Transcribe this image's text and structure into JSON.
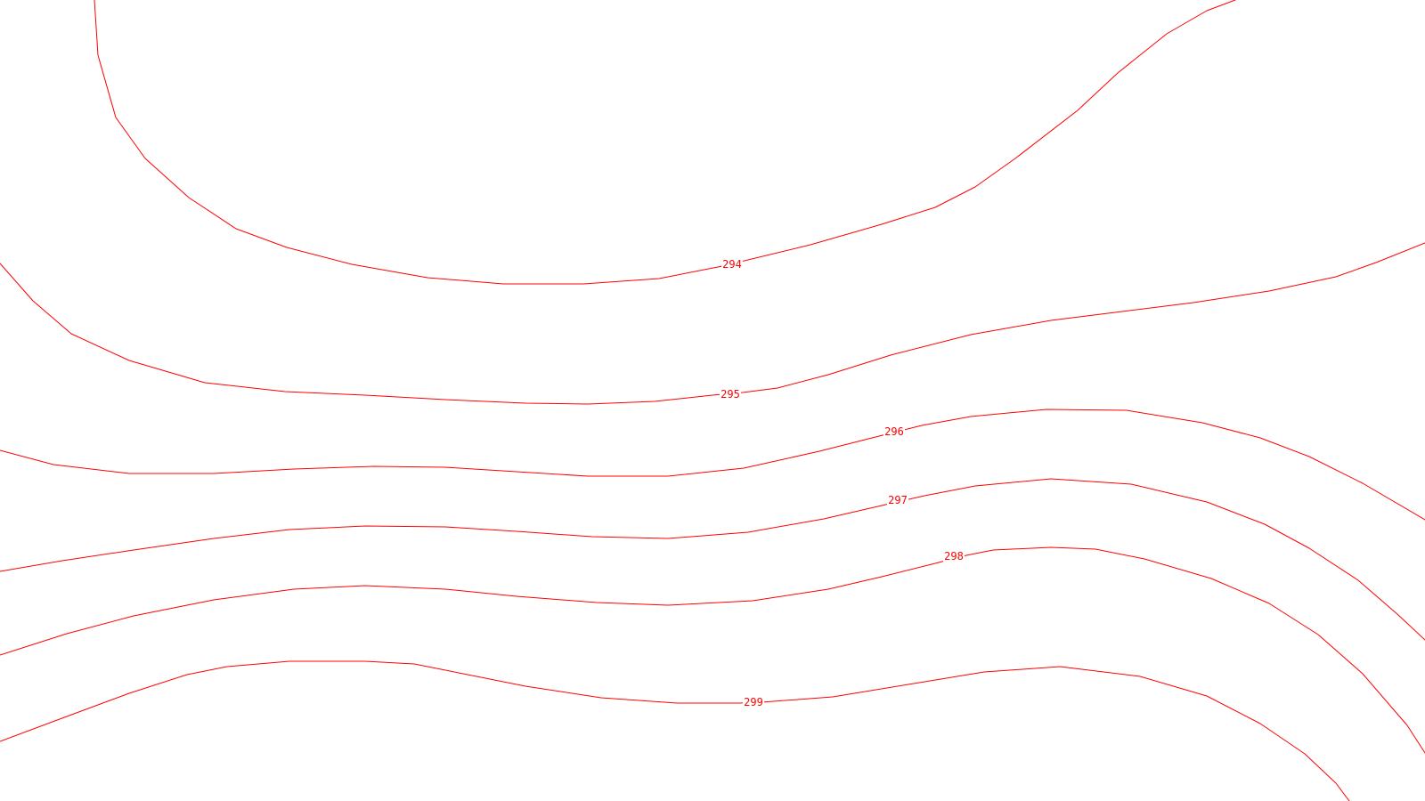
{
  "map": {
    "background_color": "#ffffff",
    "line_color": "#ff0000",
    "contours": [
      {
        "id": "c294",
        "label": "294",
        "value": 294
      },
      {
        "id": "c295",
        "label": "295",
        "value": 295
      },
      {
        "id": "c296",
        "label": "296",
        "value": 296
      },
      {
        "id": "c297",
        "label": "297",
        "value": 297
      },
      {
        "id": "c298",
        "label": "298",
        "value": 298
      },
      {
        "id": "c299",
        "label": "299",
        "value": 299
      }
    ]
  }
}
